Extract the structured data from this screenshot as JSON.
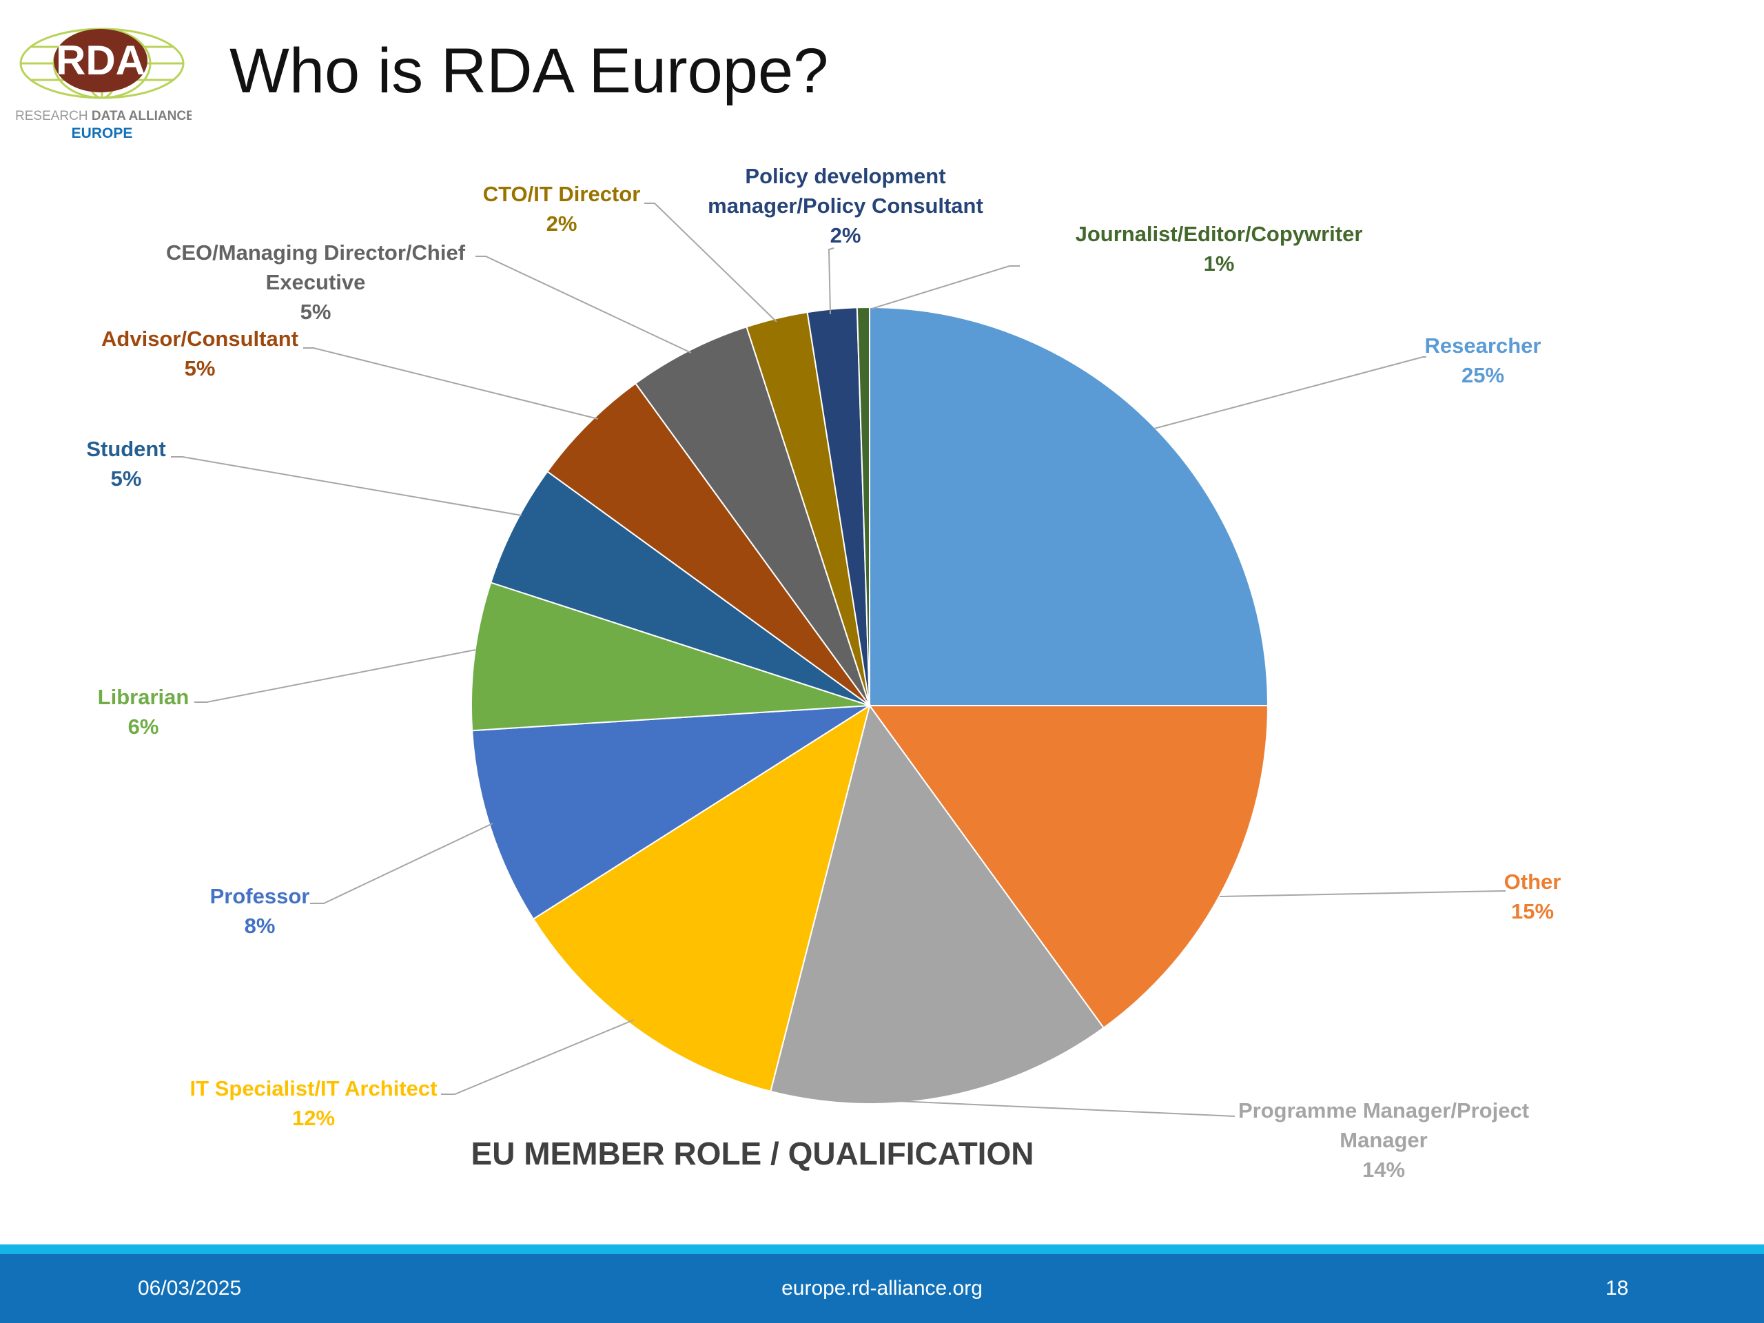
{
  "slide": {
    "title": "Who is RDA Europe?"
  },
  "logo": {
    "mark": "RDA",
    "line1a": "RESEARCH ",
    "line1b": "DATA ALLIANCE",
    "line2": "EUROPE"
  },
  "footer": {
    "date": "06/03/2025",
    "url": "europe.rd-alliance.org",
    "page": "18"
  },
  "chart_data": {
    "type": "pie",
    "title": "EU MEMBER ROLE / QUALIFICATION",
    "start_angle_deg": 0,
    "direction": "clockwise",
    "legend": "none",
    "data_labels": "outside with leader lines",
    "slices": [
      {
        "label": "Researcher",
        "value": 25,
        "display": "25%",
        "color": "#5b9bd5"
      },
      {
        "label": "Other",
        "value": 15,
        "display": "15%",
        "color": "#ed7d31"
      },
      {
        "label": "Programme Manager/Project Manager",
        "value": 14,
        "display": "14%",
        "color": "#a5a5a5"
      },
      {
        "label": "IT Specialist/IT Architect",
        "value": 12,
        "display": "12%",
        "color": "#ffc000"
      },
      {
        "label": "Professor",
        "value": 8,
        "display": "8%",
        "color": "#4472c4"
      },
      {
        "label": "Librarian",
        "value": 6,
        "display": "6%",
        "color": "#70ad47"
      },
      {
        "label": "Student",
        "value": 5,
        "display": "5%",
        "color": "#255e91"
      },
      {
        "label": "Advisor/Consultant",
        "value": 5,
        "display": "5%",
        "color": "#9e480e"
      },
      {
        "label": "CEO/Managing Director/Chief Executive",
        "value": 5,
        "display": "5%",
        "color": "#636363"
      },
      {
        "label": "CTO/IT Director",
        "value": 2.5,
        "display": "2%",
        "color": "#997300"
      },
      {
        "label": "Policy development manager/Policy Consultant",
        "value": 2,
        "display": "2%",
        "color": "#264478"
      },
      {
        "label": "Journalist/Editor/Copywriter",
        "value": 0.5,
        "display": "1%",
        "color": "#43682b"
      }
    ]
  }
}
